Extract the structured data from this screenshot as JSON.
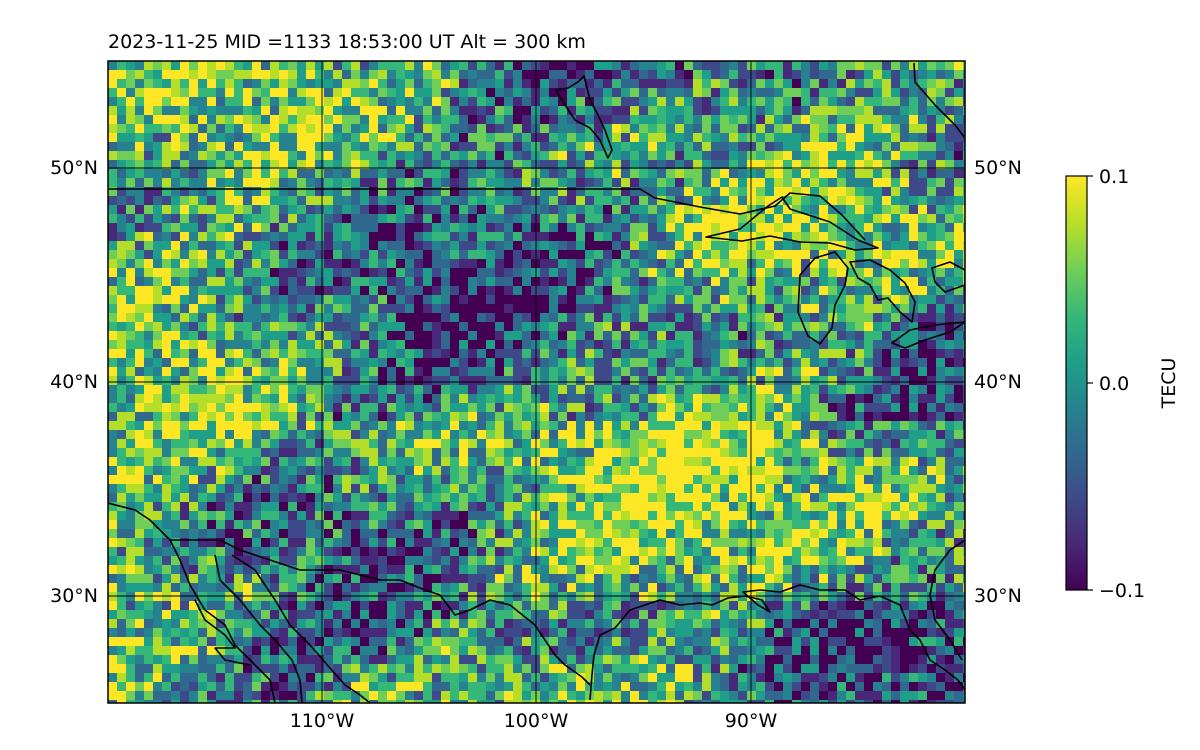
{
  "figure": {
    "title": "2023-11-25  MID =1133    18:53:00  UT  Alt = 300 km",
    "map": {
      "lon_range": [
        -120,
        -80
      ],
      "lat_range": [
        25,
        55
      ],
      "gridlines_lon": [
        -110,
        -100,
        -90
      ],
      "gridlines_lat": [
        30,
        40,
        50
      ],
      "x_tick_labels": [
        "110°W",
        "100°W",
        "90°W"
      ],
      "y_tick_labels_left": [
        "30°N",
        "40°N",
        "50°N"
      ],
      "y_tick_labels_right": [
        "30°N",
        "40°N",
        "50°N"
      ],
      "colormap": "viridis",
      "field": "TEC anomaly, noisy cell-wise values between -0.1 and 0.1",
      "coastline_color": "#000000"
    },
    "colorbar": {
      "label": "TECU",
      "min": -0.1,
      "max": 0.1,
      "tick_labels": [
        "−0.1",
        "0.0",
        "0.1"
      ],
      "colors": [
        "#440154",
        "#482878",
        "#3e4989",
        "#31688e",
        "#26828e",
        "#1f9e89",
        "#35b779",
        "#6ece58",
        "#b5de2b",
        "#fde725"
      ]
    }
  }
}
